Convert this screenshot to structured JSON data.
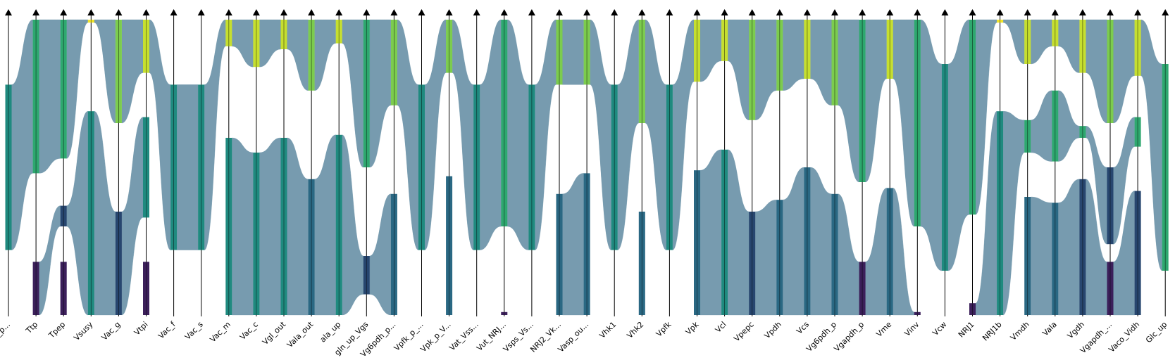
{
  "chart_data": {
    "type": "parallel-categories",
    "title": "",
    "xlabel": "",
    "ylabel": "",
    "grid": false,
    "flow_color": "#6b93a8",
    "palette": {
      "dark_purple": "#3b1f5a",
      "navy": "#27466f",
      "teal_blue": "#2a6883",
      "teal": "#1f8a7f",
      "green": "#2ea86f",
      "light_green": "#7ccc4e",
      "yellow_green": "#c6df2f",
      "yellow": "#f0e32a"
    },
    "axes": [
      {
        "label": "Vno_p...",
        "blocks": [
          [
            "teal",
            0.22,
            0.78
          ]
        ]
      },
      {
        "label": "Ttp",
        "blocks": [
          [
            "green",
            0.0,
            0.52
          ],
          [
            "dark_purple",
            0.82,
            1.0
          ]
        ]
      },
      {
        "label": "Tpep",
        "blocks": [
          [
            "green",
            0.0,
            0.47
          ],
          [
            "navy",
            0.63,
            0.7
          ],
          [
            "dark_purple",
            0.82,
            1.0
          ]
        ]
      },
      {
        "label": "Vsusy",
        "blocks": [
          [
            "yellow",
            0.0,
            0.01
          ],
          [
            "teal",
            0.31,
            1.0
          ]
        ]
      },
      {
        "label": "Vac_g",
        "blocks": [
          [
            "light_green",
            0.0,
            0.35
          ],
          [
            "navy",
            0.65,
            1.0
          ]
        ]
      },
      {
        "label": "Vtpi",
        "blocks": [
          [
            "yellow_green",
            0.0,
            0.18
          ],
          [
            "teal",
            0.33,
            0.67
          ],
          [
            "dark_purple",
            0.82,
            1.0
          ]
        ]
      },
      {
        "label": "Vac_f",
        "blocks": [
          [
            "teal",
            0.22,
            0.78
          ]
        ]
      },
      {
        "label": "Vac_s",
        "blocks": [
          [
            "teal",
            0.22,
            0.78
          ]
        ]
      },
      {
        "label": "Vac_m",
        "blocks": [
          [
            "yellow_green",
            0.0,
            0.09
          ],
          [
            "teal",
            0.4,
            1.0
          ]
        ]
      },
      {
        "label": "Vac_c",
        "blocks": [
          [
            "yellow_green",
            0.0,
            0.16
          ],
          [
            "teal",
            0.45,
            1.0
          ]
        ]
      },
      {
        "label": "Vgl_out",
        "blocks": [
          [
            "yellow_green",
            0.0,
            0.1
          ],
          [
            "teal",
            0.4,
            1.0
          ]
        ]
      },
      {
        "label": "Vala_out",
        "blocks": [
          [
            "light_green",
            0.0,
            0.24
          ],
          [
            "teal_blue",
            0.54,
            1.0
          ]
        ]
      },
      {
        "label": "ala_up",
        "blocks": [
          [
            "yellow_green",
            0.0,
            0.08
          ],
          [
            "teal",
            0.39,
            1.0
          ]
        ]
      },
      {
        "label": "gln_up_Vgs",
        "blocks": [
          [
            "green",
            0.0,
            0.5
          ],
          [
            "navy",
            0.8,
            0.93
          ]
        ]
      },
      {
        "label": "Vg6pdh_p...",
        "blocks": [
          [
            "light_green",
            0.0,
            0.29
          ],
          [
            "teal_blue",
            0.59,
            1.0
          ]
        ]
      },
      {
        "label": "Vpfk_p_...",
        "blocks": [
          [
            "teal",
            0.22,
            0.78
          ]
        ]
      },
      {
        "label": "Vpk_p_V...",
        "blocks": [
          [
            "light_green",
            0.0,
            0.18
          ],
          [
            "teal_blue",
            0.53,
            1.0
          ]
        ]
      },
      {
        "label": "Vat_Vss...",
        "blocks": [
          [
            "teal",
            0.22,
            0.78
          ]
        ]
      },
      {
        "label": "Vut_NRJ...",
        "blocks": [
          [
            "green",
            0.0,
            0.7
          ],
          [
            "dark_purple",
            0.99,
            1.0
          ]
        ]
      },
      {
        "label": "Vsps_Vs...",
        "blocks": [
          [
            "teal",
            0.22,
            0.78
          ]
        ]
      },
      {
        "label": "NRJ2_Vk...",
        "blocks": [
          [
            "light_green",
            0.0,
            0.22
          ],
          [
            "teal_blue",
            0.59,
            1.0
          ]
        ]
      },
      {
        "label": "Vasp_ou...",
        "blocks": [
          [
            "light_green",
            0.0,
            0.22
          ],
          [
            "teal_blue",
            0.52,
            1.0
          ]
        ]
      },
      {
        "label": "Vhk1",
        "blocks": [
          [
            "teal",
            0.22,
            0.78
          ]
        ]
      },
      {
        "label": "Vhk2",
        "blocks": [
          [
            "light_green",
            0.0,
            0.35
          ],
          [
            "teal_blue",
            0.65,
            1.0
          ]
        ]
      },
      {
        "label": "Vpfk",
        "blocks": [
          [
            "teal",
            0.22,
            0.78
          ]
        ]
      },
      {
        "label": "Vpk",
        "blocks": [
          [
            "yellow_green",
            0.0,
            0.21
          ],
          [
            "teal_blue",
            0.51,
            1.0
          ]
        ]
      },
      {
        "label": "Vcl",
        "blocks": [
          [
            "yellow_green",
            0.0,
            0.14
          ],
          [
            "teal",
            0.44,
            1.0
          ]
        ]
      },
      {
        "label": "Vpepc",
        "blocks": [
          [
            "light_green",
            0.0,
            0.34
          ],
          [
            "navy",
            0.65,
            1.0
          ]
        ]
      },
      {
        "label": "Vpdh",
        "blocks": [
          [
            "light_green",
            0.0,
            0.24
          ],
          [
            "teal_blue",
            0.61,
            1.0
          ]
        ]
      },
      {
        "label": "Vcs",
        "blocks": [
          [
            "yellow_green",
            0.0,
            0.2
          ],
          [
            "teal_blue",
            0.5,
            1.0
          ]
        ]
      },
      {
        "label": "Vg6pdh_p",
        "blocks": [
          [
            "light_green",
            0.0,
            0.29
          ],
          [
            "teal_blue",
            0.59,
            1.0
          ]
        ]
      },
      {
        "label": "Vgapdh_p",
        "blocks": [
          [
            "green",
            0.0,
            0.55
          ],
          [
            "dark_purple",
            0.82,
            1.0
          ]
        ]
      },
      {
        "label": "Vme",
        "blocks": [
          [
            "yellow_green",
            0.0,
            0.2
          ],
          [
            "teal_blue",
            0.57,
            1.0
          ]
        ]
      },
      {
        "label": "Vinv",
        "blocks": [
          [
            "green",
            0.0,
            0.7
          ],
          [
            "dark_purple",
            0.99,
            1.0
          ]
        ]
      },
      {
        "label": "Vcw",
        "blocks": [
          [
            "teal",
            0.15,
            0.85
          ]
        ]
      },
      {
        "label": "NRJ1",
        "blocks": [
          [
            "green",
            0.0,
            0.66
          ],
          [
            "dark_purple",
            0.96,
            1.0
          ]
        ]
      },
      {
        "label": "NRJ1b",
        "blocks": [
          [
            "yellow",
            0.0,
            0.01
          ],
          [
            "teal",
            0.31,
            1.0
          ]
        ]
      },
      {
        "label": "Vmdh",
        "blocks": [
          [
            "yellow_green",
            0.0,
            0.15
          ],
          [
            "green",
            0.34,
            0.45
          ],
          [
            "teal_blue",
            0.6,
            1.0
          ]
        ]
      },
      {
        "label": "Vala",
        "blocks": [
          [
            "yellow_green",
            0.0,
            0.09
          ],
          [
            "green",
            0.24,
            0.48
          ],
          [
            "teal_blue",
            0.62,
            1.0
          ]
        ]
      },
      {
        "label": "Vgdh",
        "blocks": [
          [
            "yellow_green",
            0.0,
            0.18
          ],
          [
            "green",
            0.36,
            0.4
          ],
          [
            "navy",
            0.54,
            1.0
          ]
        ]
      },
      {
        "label": "Vgapdh_...",
        "blocks": [
          [
            "light_green",
            0.0,
            0.35
          ],
          [
            "navy",
            0.5,
            0.76
          ],
          [
            "dark_purple",
            0.82,
            1.0
          ]
        ]
      },
      {
        "label": "Vaco_Vidh",
        "blocks": [
          [
            "yellow_green",
            0.0,
            0.19
          ],
          [
            "green",
            0.33,
            0.43
          ],
          [
            "navy",
            0.58,
            1.0
          ]
        ]
      },
      {
        "label": "Glc_up",
        "blocks": [
          [
            "green",
            0.15,
            0.85
          ]
        ]
      }
    ]
  }
}
